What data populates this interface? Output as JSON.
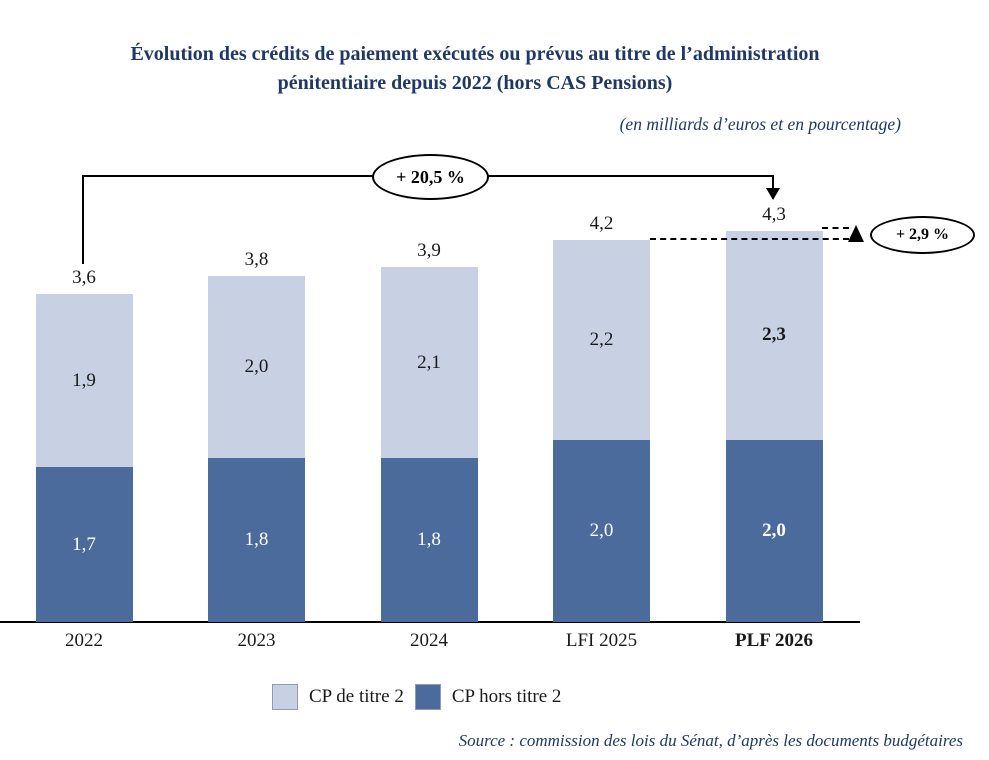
{
  "title": "Évolution des crédits de paiement exécutés ou prévus au titre de l’administration pénitentiaire depuis 2022 (hors CAS Pensions)",
  "subtitle": "(en milliards d’euros et en pourcentage)",
  "source": "Source : commission des lois du Sénat, d’après les documents budgétaires",
  "annotations": {
    "total_growth": "+ 20,5 %",
    "yearly_growth": "+ 2,9 %"
  },
  "legend": [
    {
      "label": "CP de titre 2",
      "color": "#c7d1e3"
    },
    {
      "label": "CP hors titre 2",
      "color": "#4a6b9b"
    }
  ],
  "chart_data": {
    "type": "bar",
    "stacked": true,
    "title": "Évolution des crédits de paiement exécutés ou prévus au titre de l’administration pénitentiaire depuis 2022 (hors CAS Pensions)",
    "unit": "milliards d’euros",
    "categories": [
      "2022",
      "2023",
      "2024",
      "LFI 2025",
      "PLF 2026"
    ],
    "series": [
      {
        "name": "CP hors titre 2",
        "color": "#4a6b9b",
        "values": [
          1.7,
          1.8,
          1.8,
          2.0,
          2.0
        ],
        "labels": [
          "1,7",
          "1,8",
          "1,8",
          "2,0",
          "2,0"
        ]
      },
      {
        "name": "CP de titre 2",
        "color": "#c7d1e3",
        "values": [
          1.9,
          2.0,
          2.1,
          2.2,
          2.3
        ],
        "labels": [
          "1,9",
          "2,0",
          "2,1",
          "2,2",
          "2,3"
        ]
      }
    ],
    "totals": [
      3.6,
      3.8,
      3.9,
      4.2,
      4.3
    ],
    "total_labels": [
      "3,6",
      "3,8",
      "3,9",
      "4,2",
      "4,3"
    ],
    "emphasized_category": "PLF 2026",
    "growth_2022_to_2026_pct": "+ 20,5 %",
    "growth_2025_to_2026_pct": "+ 2,9 %",
    "ylim": [
      0,
      4.5
    ],
    "grid": false,
    "legend_position": "bottom"
  }
}
